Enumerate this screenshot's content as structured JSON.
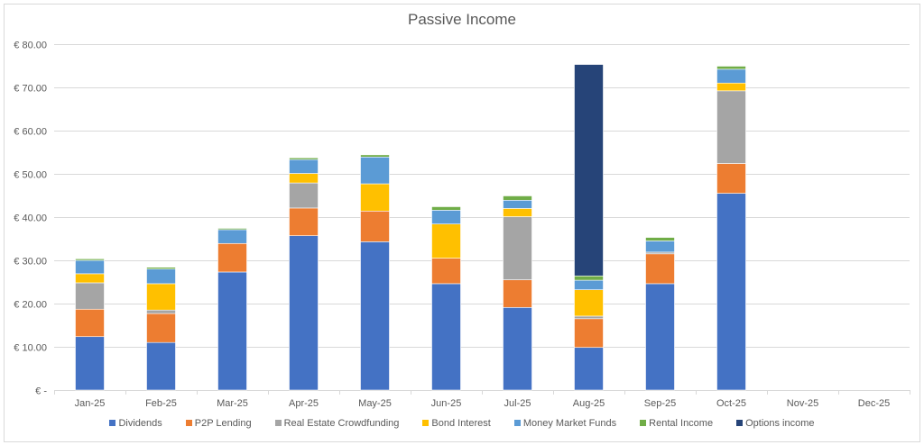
{
  "chart_data": {
    "type": "bar",
    "stacked": true,
    "title": "Passive Income",
    "xlabel": "",
    "ylabel": "",
    "ylim": [
      0,
      80
    ],
    "y_ticks": [
      0,
      10,
      20,
      30,
      40,
      50,
      60,
      70,
      80
    ],
    "y_tick_labels": [
      "€ -",
      "€ 10.00",
      "€ 20.00",
      "€ 30.00",
      "€ 40.00",
      "€ 50.00",
      "€ 60.00",
      "€ 70.00",
      "€ 80.00"
    ],
    "grid": true,
    "legend_position": "bottom",
    "categories": [
      "Jan-25",
      "Feb-25",
      "Mar-25",
      "Apr-25",
      "May-25",
      "Jun-25",
      "Jul-25",
      "Aug-25",
      "Sep-25",
      "Oct-25",
      "Nov-25",
      "Dec-25"
    ],
    "series": [
      {
        "name": "Dividends",
        "color": "#4472C4",
        "values": [
          12.35,
          11.0,
          27.3,
          35.7,
          34.3,
          24.6,
          19.1,
          9.85,
          24.6,
          45.5,
          0,
          0
        ]
      },
      {
        "name": "P2P Lending",
        "color": "#ED7D31",
        "values": [
          6.35,
          6.7,
          6.6,
          6.4,
          7.1,
          5.9,
          6.4,
          6.65,
          6.9,
          6.9,
          0,
          0
        ]
      },
      {
        "name": "Real Estate Crowdfunding",
        "color": "#A5A5A5",
        "values": [
          6.1,
          0.8,
          0,
          5.8,
          0,
          0,
          14.6,
          0.6,
          0.4,
          16.8,
          0,
          0
        ]
      },
      {
        "name": "Bond Interest",
        "color": "#FFC000",
        "values": [
          2.1,
          6.1,
          0,
          2.2,
          6.3,
          7.9,
          1.9,
          6.1,
          0,
          1.8,
          0,
          0
        ]
      },
      {
        "name": "Money Market Funds",
        "color": "#5B9BD5",
        "values": [
          3.1,
          3.4,
          3.2,
          3.2,
          6.2,
          3.2,
          1.9,
          2.2,
          2.6,
          3.2,
          0,
          0
        ]
      },
      {
        "name": "Rental Income",
        "color": "#70AD47",
        "values": [
          0.35,
          0.4,
          0.3,
          0.4,
          0.5,
          0.8,
          1.0,
          1.0,
          0.8,
          0.7,
          0,
          0
        ]
      },
      {
        "name": "Options income",
        "color": "#264478",
        "values": [
          0,
          0,
          0,
          0,
          0,
          0,
          0,
          48.9,
          0,
          0,
          0,
          0
        ]
      }
    ]
  }
}
